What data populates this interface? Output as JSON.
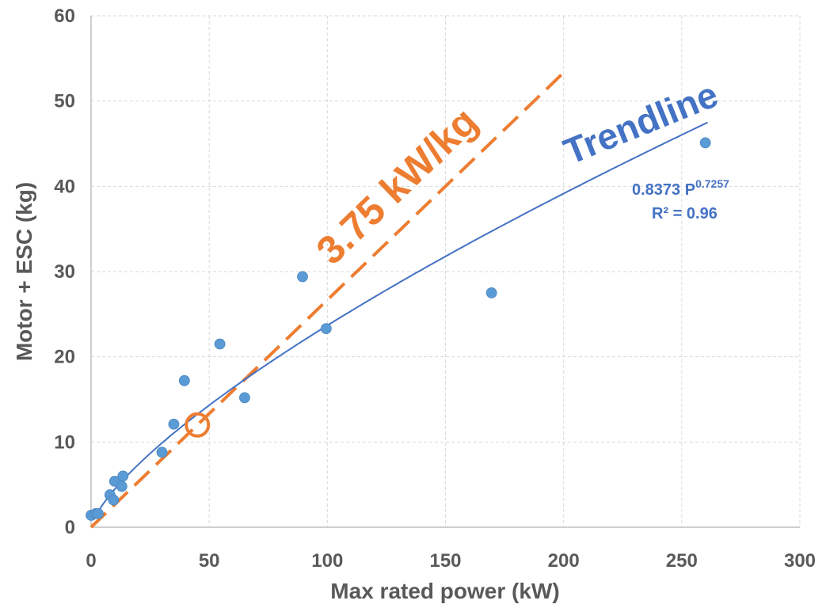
{
  "chart_data": {
    "type": "scatter",
    "title": "",
    "xlabel": "Max rated power (kW)",
    "ylabel": "Motor + ESC (kg)",
    "xlim": [
      0,
      300
    ],
    "ylim": [
      0,
      60
    ],
    "xticks": [
      "0",
      "50",
      "100",
      "150",
      "200",
      "250",
      "300"
    ],
    "yticks": [
      "0",
      "10",
      "20",
      "30",
      "40",
      "50",
      "60"
    ],
    "grid": "dashed",
    "series": [
      {
        "type": "scatter",
        "color": "#5B9BD5",
        "points": [
          [
            0,
            1.4
          ],
          [
            2,
            1.6
          ],
          [
            3,
            1.6
          ],
          [
            8,
            3.8
          ],
          [
            9.5,
            3.2
          ],
          [
            10,
            5.4
          ],
          [
            13,
            4.8
          ],
          [
            13.5,
            6.0
          ],
          [
            30,
            8.8
          ],
          [
            35,
            12.1
          ],
          [
            39.5,
            17.2
          ],
          [
            54.5,
            21.5
          ],
          [
            65,
            15.2
          ],
          [
            89.5,
            29.4
          ],
          [
            99.5,
            23.3
          ],
          [
            169.5,
            27.5
          ],
          [
            260,
            45.1
          ]
        ]
      },
      {
        "type": "power-trendline",
        "color": "#4472C4",
        "coefficient": 0.8373,
        "exponent": 0.7257,
        "x_range": [
          1,
          261
        ]
      },
      {
        "type": "dashed-line",
        "color": "#ED7D31",
        "slope_kw_per_kg": 3.75,
        "x_range": [
          0,
          200
        ]
      }
    ],
    "highlight": {
      "x": 45,
      "y": 12,
      "color": "#ED7D31"
    },
    "annotations": {
      "specific_power": "3.75 kW/kg",
      "trendline": "Trendline",
      "equation_base": "0.8373 P",
      "equation_exp": "0.7257",
      "r_squared": "R² = 0.96"
    }
  }
}
